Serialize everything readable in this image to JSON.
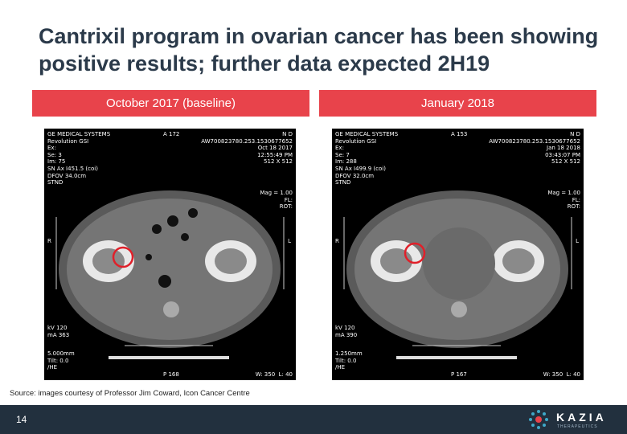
{
  "title": "Cantrixil program in ovarian cancer has been showing positive results; further data expected 2H19",
  "panels": [
    {
      "header": "October 2017 (baseline)",
      "image": {
        "top_left": [
          "GE MEDICAL SYSTEMS",
          "Revolution GSI",
          "Ex:",
          "Se: 3",
          "Im: 75",
          "SN Ax I451.5 (coi)",
          "DFOV 34.0cm",
          "STND"
        ],
        "top_center": "A 172",
        "top_right": [
          "N D",
          "AW700823780.253.1530677652",
          "Oct 18 2017",
          "12:55:49 PM",
          "512 X 512"
        ],
        "view_settings": [
          "Mag = 1.00",
          "FL:",
          "ROT:"
        ],
        "left_marker": "R",
        "right_marker": "L",
        "acquisition": [
          "kV 120",
          "mA 363"
        ],
        "slice": [
          "5.000mm",
          "Tilt: 0.0",
          "/HE"
        ],
        "bottom_center": "P 168",
        "bottom_right": "W: 350  L: 40"
      }
    },
    {
      "header": "January 2018",
      "image": {
        "top_left": [
          "GE MEDICAL SYSTEMS",
          "Revolution GSI",
          "Ex:",
          "Se: 7",
          "Im: 288",
          "SN Ax I499.9 (coi)",
          "DFOV 32.0cm",
          "STND"
        ],
        "top_center": "A 153",
        "top_right": [
          "N D",
          "AW700823780.253.1530677652",
          "Jan 18 2018",
          "03:43:07 PM",
          "512 X 512"
        ],
        "view_settings": [
          "Mag = 1.00",
          "FL:",
          "ROT:"
        ],
        "left_marker": "R",
        "right_marker": "L",
        "acquisition": [
          "kV 120",
          "mA 390"
        ],
        "slice": [
          "1.250mm",
          "Tilt: 0.0",
          "/HE"
        ],
        "bottom_center": "P 167",
        "bottom_right": "W: 350  L: 40"
      }
    }
  ],
  "source": "Source: images courtesy of Professor Jim Coward, Icon Cancer Centre",
  "footer": {
    "page_number": "14",
    "logo": "KAZIA",
    "logo_tagline": "THERAPEUTICS"
  }
}
